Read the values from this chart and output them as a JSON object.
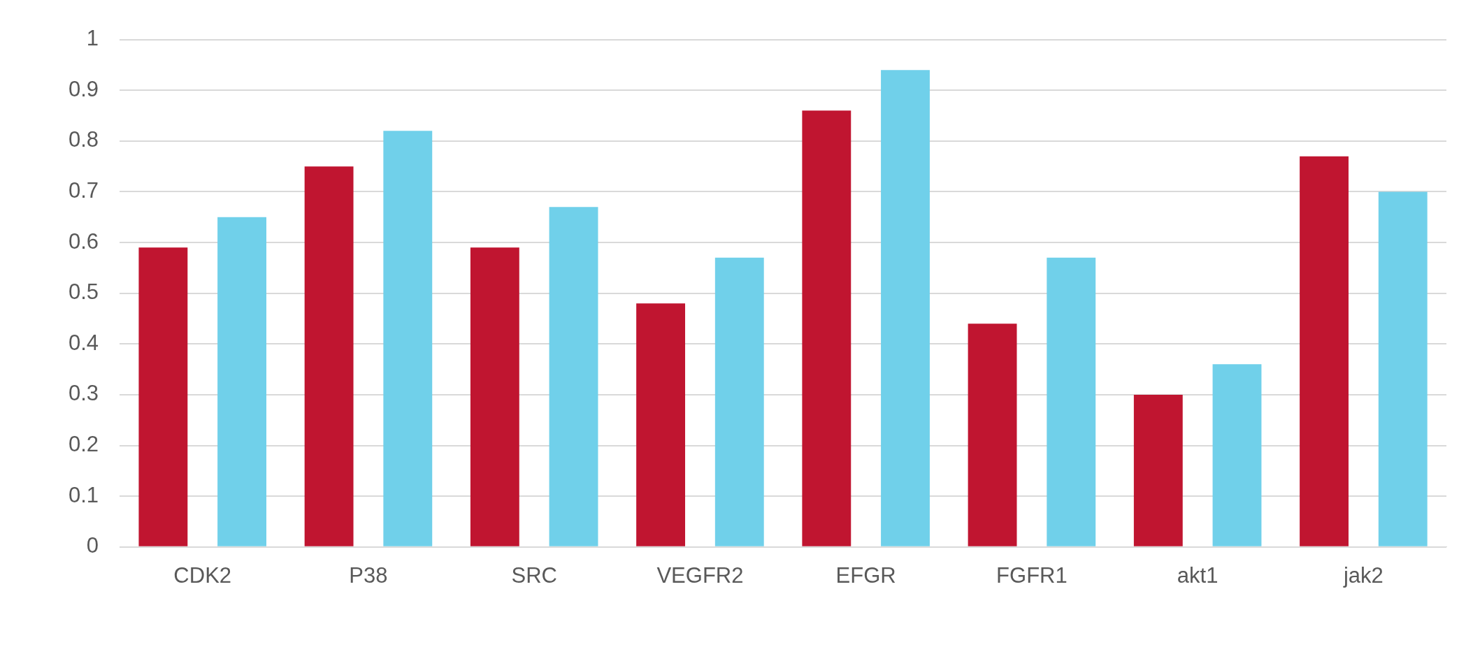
{
  "chart_data": {
    "type": "bar",
    "categories": [
      "CDK2",
      "P38",
      "SRC",
      "VEGFR2",
      "EFGR",
      "FGFR1",
      "akt1",
      "jak2"
    ],
    "series": [
      {
        "color": "#c01530",
        "values": [
          0.59,
          0.75,
          0.59,
          0.48,
          0.86,
          0.44,
          0.3,
          0.77
        ]
      },
      {
        "color": "#70d0ea",
        "values": [
          0.65,
          0.82,
          0.67,
          0.57,
          0.94,
          0.57,
          0.36,
          0.7
        ]
      }
    ],
    "ylim": [
      0,
      1
    ],
    "yticks": [
      0,
      0.1,
      0.2,
      0.3,
      0.4,
      0.5,
      0.6,
      0.7,
      0.8,
      0.9,
      1
    ],
    "grid": "y"
  }
}
